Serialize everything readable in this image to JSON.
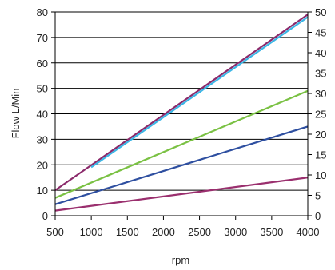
{
  "chart_data": {
    "type": "line",
    "xlabel": "rpm",
    "ylabel": "Flow L/Min",
    "xlim": [
      500,
      4000
    ],
    "ylim": [
      0,
      80
    ],
    "y2lim": [
      0,
      50
    ],
    "xticks": [
      "500",
      "1000",
      "1500",
      "2000",
      "2500",
      "3000",
      "3500",
      "4000"
    ],
    "yticks": [
      "0",
      "10",
      "20",
      "30",
      "40",
      "50",
      "60",
      "70",
      "80"
    ],
    "y2ticks": [
      "0",
      "5",
      "10",
      "15",
      "20",
      "25",
      "30",
      "35",
      "40",
      "45",
      "50"
    ],
    "grid": true,
    "legend": "none",
    "series": [
      {
        "color": "#8b2a6b",
        "x": [
          500,
          4000
        ],
        "y": [
          10,
          79
        ]
      },
      {
        "color": "#3ab6e6",
        "x": [
          1000,
          4000
        ],
        "y": [
          19,
          78
        ]
      },
      {
        "color": "#7ac143",
        "x": [
          500,
          4000
        ],
        "y": [
          7,
          49
        ]
      },
      {
        "color": "#2e4fa0",
        "x": [
          500,
          4000
        ],
        "y": [
          4.5,
          35
        ]
      },
      {
        "color": "#9a2f6e",
        "x": [
          500,
          4000
        ],
        "y": [
          2,
          15
        ]
      }
    ]
  }
}
